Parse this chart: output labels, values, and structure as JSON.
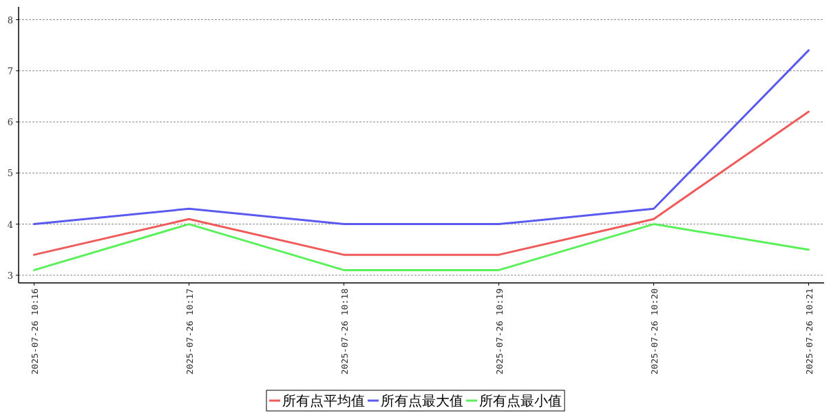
{
  "chart_data": {
    "type": "line",
    "categories": [
      "2025-07-26 10:16",
      "2025-07-26 10:17",
      "2025-07-26 10:18",
      "2025-07-26 10:19",
      "2025-07-26 10:20",
      "2025-07-26 10:21"
    ],
    "series": [
      {
        "name": "所有点平均值",
        "color": "#f05a5a",
        "values": [
          3.4,
          4.1,
          3.4,
          3.4,
          4.1,
          6.2
        ]
      },
      {
        "name": "所有点最大值",
        "color": "#5a5af0",
        "values": [
          4.0,
          4.3,
          4.0,
          4.0,
          4.3,
          7.4
        ]
      },
      {
        "name": "所有点最小值",
        "color": "#5af05a",
        "values": [
          3.1,
          4.0,
          3.1,
          3.1,
          4.0,
          3.5
        ]
      }
    ],
    "ylim": [
      2.85,
      8.25
    ],
    "yticks": [
      3,
      4,
      5,
      6,
      7,
      8
    ],
    "grid": "y",
    "legend": "bottom",
    "marker": "none",
    "line_style": "solid"
  }
}
